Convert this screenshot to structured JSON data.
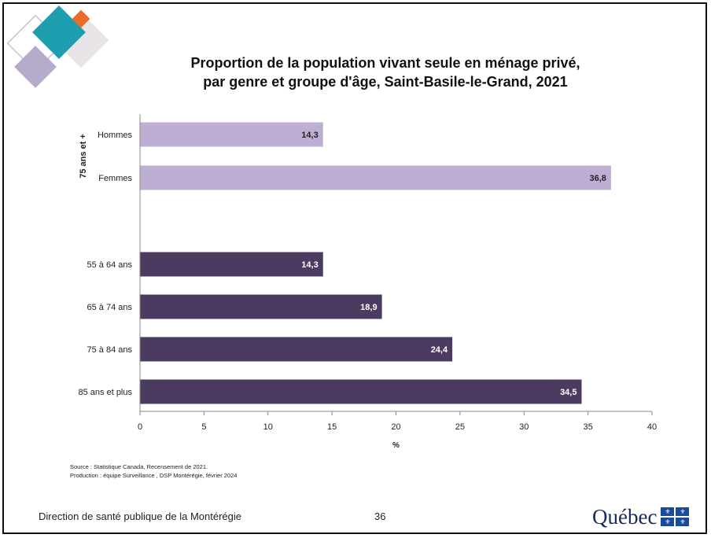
{
  "chart_data": {
    "type": "bar",
    "orientation": "horizontal",
    "title_line1": "Proportion de la population vivant seule en ménage privé,",
    "title_line2": "par genre et groupe d'âge, Saint-Basile-le-Grand, 2021",
    "xlabel": "%",
    "xlim": [
      0,
      40
    ],
    "xticks": [
      0,
      5,
      10,
      15,
      20,
      25,
      30,
      35,
      40
    ],
    "grid": false,
    "groups": [
      {
        "label": "75 ans et +",
        "color": "#bfaed3",
        "label_color": "#222222",
        "bars": [
          {
            "category": "Hommes",
            "value": 14.3,
            "value_label": "14,3"
          },
          {
            "category": "Femmes",
            "value": 36.8,
            "value_label": "36,8"
          }
        ]
      },
      {
        "label": "",
        "color": "#4b3b60",
        "label_color": "#ffffff",
        "bars": [
          {
            "category": "55 à 64 ans",
            "value": 14.3,
            "value_label": "14,3"
          },
          {
            "category": "65 à 74 ans",
            "value": 18.9,
            "value_label": "18,9"
          },
          {
            "category": "75 à 84 ans",
            "value": 24.4,
            "value_label": "24,4"
          },
          {
            "category": "85 ans et plus",
            "value": 34.5,
            "value_label": "34,5"
          }
        ]
      }
    ]
  },
  "notes": {
    "source": "Source : Statistique Canada, Recensement de 2021.",
    "production": "Production : équipe Surveillance , DSP Montérégie, février 2024"
  },
  "footer": {
    "organization": "Direction de santé publique de la Montérégie",
    "page_number": "36",
    "logo_text": "Québec"
  }
}
